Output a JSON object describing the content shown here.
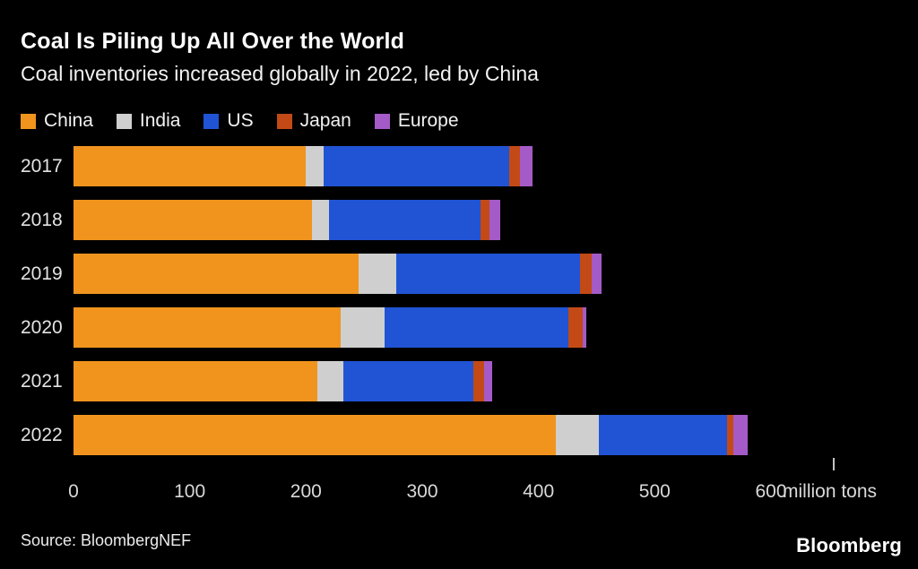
{
  "chart_data": {
    "type": "bar",
    "orientation": "horizontal",
    "stacked": true,
    "title": "Coal Is Piling Up All Over the World",
    "subtitle": "Coal inventories increased globally in 2022, led by China",
    "categories": [
      "2017",
      "2018",
      "2019",
      "2020",
      "2021",
      "2022"
    ],
    "series": [
      {
        "name": "China",
        "color": "#F0941E",
        "values": [
          200,
          205,
          245,
          230,
          210,
          415
        ]
      },
      {
        "name": "India",
        "color": "#CFCFCF",
        "values": [
          15,
          15,
          33,
          38,
          22,
          37
        ]
      },
      {
        "name": "US",
        "color": "#2154D4",
        "values": [
          160,
          130,
          158,
          158,
          112,
          110
        ]
      },
      {
        "name": "Japan",
        "color": "#C34A16",
        "values": [
          9,
          8,
          10,
          12,
          9,
          6
        ]
      },
      {
        "name": "Europe",
        "color": "#A45BC7",
        "values": [
          11,
          9,
          8,
          3,
          7,
          12
        ]
      }
    ],
    "xlim": [
      0,
      600
    ],
    "xticks": [
      0,
      100,
      200,
      300,
      400,
      500,
      600
    ],
    "x_unit": "million tons",
    "legend_position": "top",
    "grid": false,
    "source": "Source: BloombergNEF"
  },
  "branding": {
    "logo_text": "Bloomberg"
  },
  "colors": {
    "background": "#000000",
    "text": "#FFFFFF",
    "axis_text": "#D9D9D9"
  }
}
